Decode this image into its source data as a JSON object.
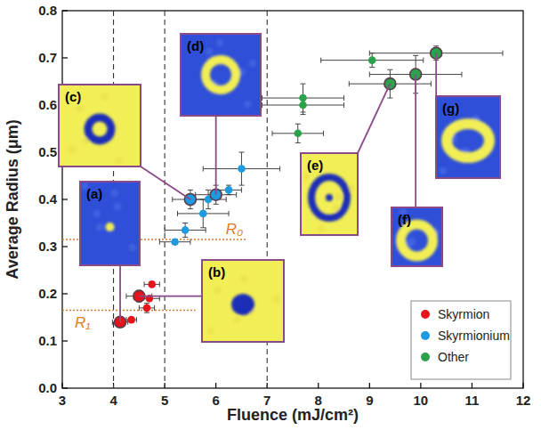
{
  "chart_data": {
    "type": "scatter",
    "x_label": "Fluence (mJ/cm²)",
    "y_label": "Average Radius (μm)",
    "xlim": [
      3,
      12
    ],
    "ylim": [
      0,
      0.8
    ],
    "xticks": [
      3,
      4,
      5,
      6,
      7,
      8,
      9,
      10,
      11,
      12
    ],
    "yticks": [
      {
        "value": 0,
        "label": "0.0"
      },
      0.1,
      0.2,
      0.3,
      0.4,
      0.5,
      0.6,
      0.7,
      0.8
    ],
    "legend": "lower right",
    "marker": "circle",
    "series": [
      {
        "name": "Skyrmion",
        "color": "#e8141c",
        "x": [
          4.13,
          4.35,
          4.5,
          4.65,
          4.7,
          4.75
        ],
        "values": [
          0.14,
          0.145,
          0.195,
          0.17,
          0.19,
          0.22
        ],
        "x_err": [
          0.15,
          0.1,
          0.25,
          0.15,
          0.2,
          0.15
        ],
        "y_err": [
          0.01,
          0.005,
          0.012,
          0.01,
          0.005,
          0.005
        ]
      },
      {
        "name": "Skyrmionium",
        "color": "#1e9be0",
        "x": [
          5.2,
          5.4,
          5.5,
          5.75,
          5.85,
          6.0,
          6.25,
          6.5
        ],
        "values": [
          0.31,
          0.335,
          0.4,
          0.37,
          0.4,
          0.41,
          0.42,
          0.465
        ],
        "x_err": [
          0.3,
          0.4,
          0.35,
          0.5,
          0.35,
          0.4,
          0.25,
          0.75
        ],
        "y_err": [
          0.005,
          0.015,
          0.02,
          0.03,
          0.02,
          0.02,
          0.01,
          0.035
        ]
      },
      {
        "name": "Other",
        "color": "#2aa14a",
        "x": [
          7.6,
          7.7,
          7.7,
          9.05,
          9.4,
          9.9,
          10.3
        ],
        "values": [
          0.54,
          0.6,
          0.615,
          0.695,
          0.645,
          0.665,
          0.71
        ],
        "x_err": [
          0.5,
          0.8,
          0.8,
          1.0,
          0.8,
          0.9,
          1.3
        ],
        "y_err": [
          0.02,
          0.02,
          0.03,
          0.015,
          0.03,
          0.04,
          0.015
        ]
      }
    ],
    "vlines": [
      4,
      5,
      7
    ],
    "hlines": [
      {
        "value": 0.315,
        "label": "R₀",
        "x_end": 6.6
      },
      {
        "value": 0.165,
        "label": "R₁",
        "x_end": 5.6
      }
    ],
    "insets": [
      {
        "label": "(a)",
        "series": 0,
        "index": 0
      },
      {
        "label": "(b)",
        "series": 0,
        "index": 2
      },
      {
        "label": "(c)",
        "series": 1,
        "index": 2
      },
      {
        "label": "(d)",
        "series": 1,
        "index": 5
      },
      {
        "label": "(e)",
        "series": 2,
        "index": 4
      },
      {
        "label": "(f)",
        "series": 2,
        "index": 5
      },
      {
        "label": "(g)",
        "series": 2,
        "index": 6
      }
    ]
  }
}
